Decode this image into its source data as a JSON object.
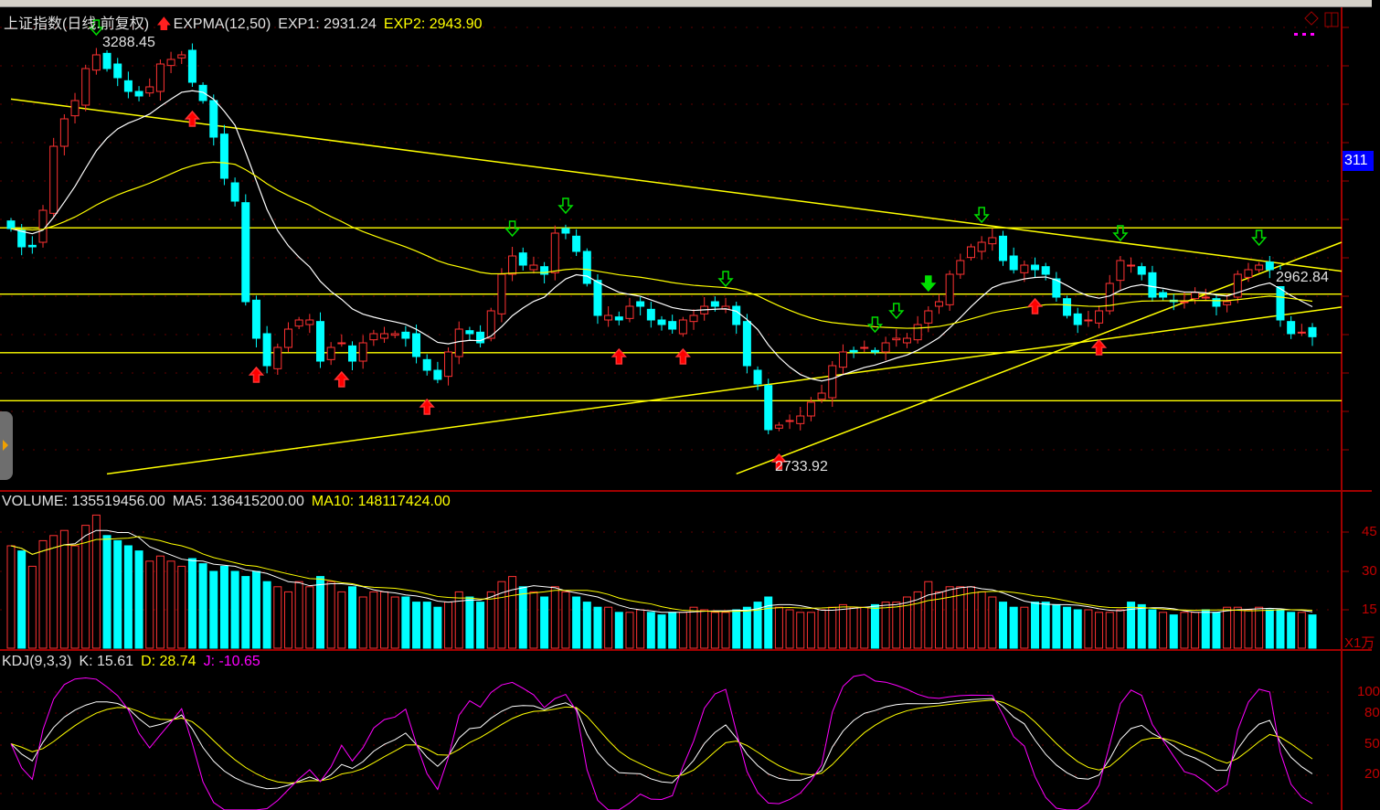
{
  "header": {
    "title": "上证指数(日线.前复权)",
    "indicator": "EXPMA(12,50)",
    "exp1": "EXP1: 2931.24",
    "exp2": "EXP2: 2943.90"
  },
  "volume_header": {
    "volume": "VOLUME: 135519456.00",
    "ma5": "MA5: 136415200.00",
    "ma10": "MA10: 148117424.00"
  },
  "kdj_header": {
    "name": "KDJ(9,3,3)",
    "k": "K: 15.61",
    "d": "D: 28.74",
    "j": "J: -10.65"
  },
  "annotations": {
    "high_label": "3288.45",
    "low_label": "2733.92",
    "last_price_label": "2962.84",
    "axis_price_tag": "311"
  },
  "volume_axis": {
    "ticks": [
      "45",
      "30",
      "15"
    ],
    "unit": "X1万"
  },
  "kdj_axis": {
    "ticks": [
      "100",
      "80",
      "50",
      "20"
    ]
  },
  "colors": {
    "up": "#ff3232",
    "down": "#00ffff",
    "exp1": "#ffffff",
    "exp2": "#ffff00",
    "trendline": "#ffff00",
    "axis": "#a00000",
    "j_line": "#ff00ff"
  },
  "chart_data": {
    "type": "candlestick",
    "closes": [
      3044,
      3020,
      3020,
      3068,
      3152,
      3188,
      3212,
      3254,
      3272,
      3254,
      3242,
      3224,
      3218,
      3230,
      3260,
      3266,
      3272,
      3236,
      3212,
      3164,
      3110,
      3080,
      2948,
      2900,
      2864,
      2888,
      2912,
      2924,
      2924,
      2870,
      2888,
      2894,
      2870,
      2894,
      2906,
      2906,
      2906,
      2900,
      2876,
      2858,
      2846,
      2882,
      2912,
      2906,
      2894,
      2936,
      2984,
      3008,
      2996,
      2996,
      2984,
      3038,
      3038,
      3014,
      2972,
      2930,
      2930,
      2924,
      2942,
      2942,
      2924,
      2918,
      2912,
      2924,
      2930,
      2942,
      2942,
      2942,
      2918,
      2864,
      2840,
      2780,
      2786,
      2792,
      2798,
      2816,
      2828,
      2864,
      2882,
      2882,
      2888,
      2882,
      2894,
      2900,
      2900,
      2918,
      2936,
      2948,
      2984,
      3002,
      3020,
      3026,
      3032,
      3002,
      2990,
      2996,
      2990,
      2984,
      2954,
      2930,
      2918,
      2924,
      2936,
      2972,
      3002,
      2996,
      2984,
      2954,
      2954,
      2948,
      2948,
      2960,
      2954,
      2942,
      2948,
      2984,
      2990,
      2996,
      2990,
      2924,
      2906,
      2908,
      2902
    ],
    "volume": [
      40,
      38,
      32,
      42,
      44,
      46,
      40,
      48,
      52,
      44,
      42,
      40,
      38,
      34,
      36,
      34,
      32,
      35,
      33,
      30,
      32,
      30,
      28,
      30,
      26,
      24,
      22,
      26,
      24,
      28,
      26,
      22,
      24,
      20,
      22,
      22,
      20,
      20,
      18,
      18,
      16,
      18,
      22,
      20,
      18,
      22,
      26,
      28,
      24,
      22,
      20,
      24,
      22,
      20,
      18,
      16,
      16,
      14,
      14,
      15,
      14,
      13,
      14,
      14,
      16,
      15,
      14,
      14,
      15,
      16,
      18,
      20,
      16,
      15,
      14,
      14,
      15,
      16,
      17,
      16,
      16,
      17,
      18,
      18,
      20,
      22,
      26,
      22,
      24,
      24,
      24,
      22,
      20,
      18,
      16,
      16,
      18,
      18,
      17,
      16,
      15,
      15,
      14,
      14,
      15,
      18,
      17,
      15,
      14,
      13,
      14,
      14,
      15,
      14,
      16,
      16,
      15,
      16,
      15,
      15,
      14,
      14,
      13
    ],
    "horizontal_lines": [
      3045,
      2958,
      2881,
      2818
    ],
    "trendlines": [
      [
        [
          0,
          3214
        ],
        [
          125,
          2988
        ]
      ],
      [
        [
          9,
          2722
        ],
        [
          125,
          2941
        ]
      ],
      [
        [
          68,
          2722
        ],
        [
          125,
          3026
        ]
      ]
    ],
    "buy_signals": [
      17,
      23,
      31,
      39,
      57,
      63,
      72,
      96,
      102
    ],
    "sell_signals": [
      8,
      47,
      52,
      67,
      81,
      83,
      91,
      104,
      117
    ],
    "strong_sell_signals": [
      86
    ],
    "price_range": [
      2700,
      3344
    ]
  }
}
